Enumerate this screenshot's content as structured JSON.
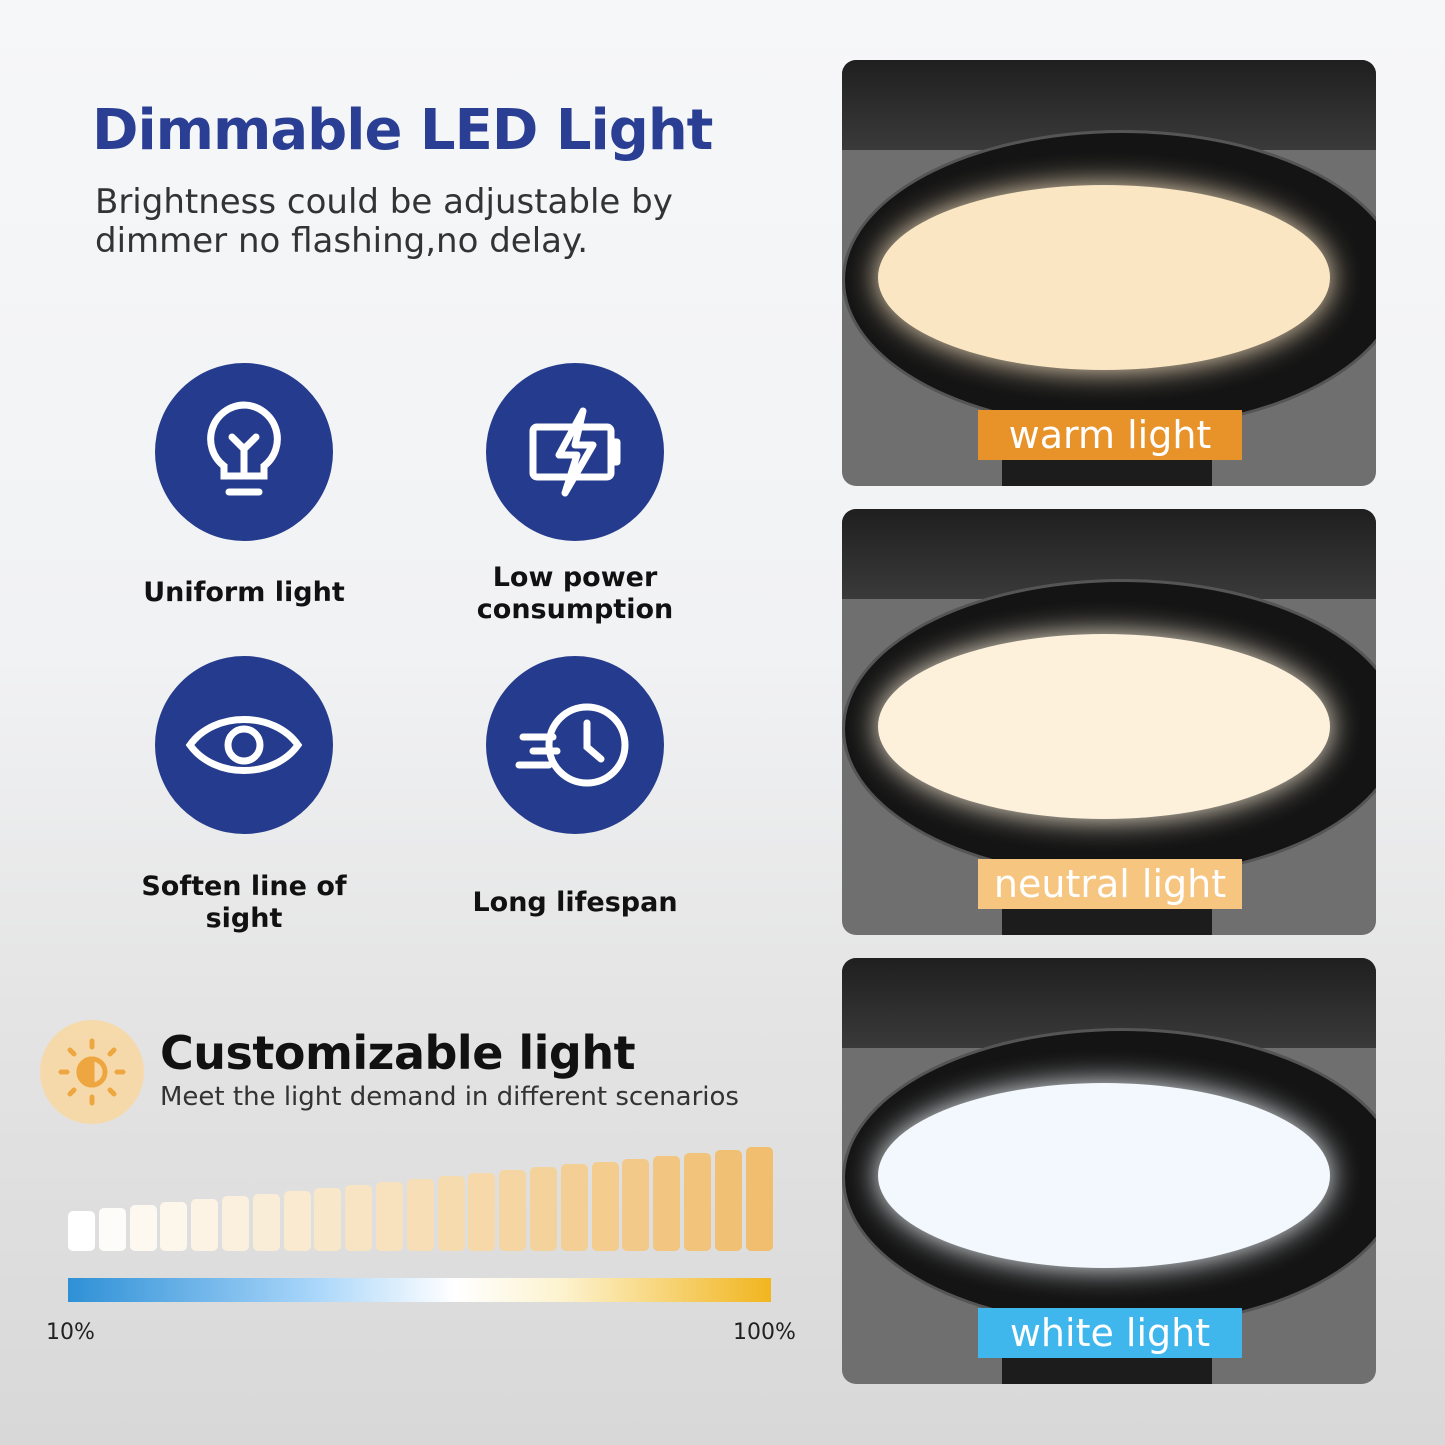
{
  "header": {
    "title": "Dimmable LED Light",
    "subtitle": "Brightness could be adjustable by dimmer no flashing,no delay."
  },
  "features": [
    {
      "label": "Uniform light",
      "icon": "lightbulb-icon"
    },
    {
      "label": "Low power consumption",
      "icon": "battery-bolt-icon"
    },
    {
      "label": "Soften line of sight",
      "icon": "eye-icon"
    },
    {
      "label": "Long lifespan",
      "icon": "fast-clock-icon"
    }
  ],
  "custom": {
    "title": "Customizable light",
    "subtitle": "Meet the light demand in different scenarios",
    "icon": "sun-brightness-icon",
    "bar_count": 23,
    "min_label": "10%",
    "max_label": "100%"
  },
  "panels": [
    {
      "label": "warm light",
      "label_color": "#e8922a",
      "disk_color": "#fbe6c4"
    },
    {
      "label": "neutral light",
      "label_color": "#f6c57f",
      "disk_color": "#fdf1dc"
    },
    {
      "label": "white light",
      "label_color": "#3fb6ec",
      "disk_color": "#f2f8fd"
    }
  ],
  "colors": {
    "brand": "#253b8d",
    "title": "#2a3f93"
  }
}
